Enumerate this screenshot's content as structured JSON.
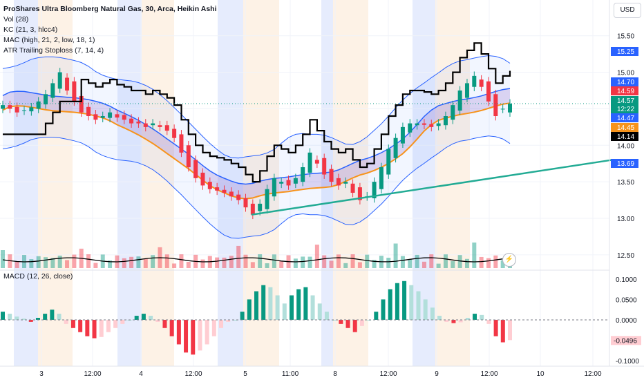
{
  "legend": {
    "title": "ProShares Ultra Bloomberg Natural Gas, 30, Arca, Heikin Ashi",
    "indicators": [
      "Vol (28)",
      "KC (21, 3, hlcc4)",
      "MAC (high, 21, 2, low, 18, 1)",
      "ATR Trailing Stoploss (7, 14, 4)"
    ],
    "macd": "MACD (12, 26, close)"
  },
  "currency": "USD",
  "colors": {
    "up": "#089981",
    "down": "#f23645",
    "kc_line": "#2962ff",
    "mac_orange": "#f7931a",
    "trend": "#22ab94",
    "stop": "#000000",
    "session_blue": "#e6ecfd",
    "session_orange": "#fdf2e6"
  },
  "chart_data": [
    {
      "type": "candlestick",
      "ylim": [
        12.3,
        15.8
      ],
      "y_ticks": [
        "15.50",
        "15.00",
        "14.50",
        "14.00",
        "13.50",
        "13.00",
        "12.50"
      ],
      "x_ticks": [
        "3",
        "12:00",
        "4",
        "12:00",
        "5",
        "11:00",
        "8",
        "12:00",
        "9",
        "12:00",
        "10",
        "12:00"
      ],
      "price_labels": [
        {
          "value": "15.25",
          "color": "#2962ff"
        },
        {
          "value": "14.70",
          "color": "#2962ff"
        },
        {
          "value": "14.59",
          "color": "#f23645"
        },
        {
          "value": "14.57",
          "color": "#089981"
        },
        {
          "value": "12:22",
          "color": "#089981"
        },
        {
          "value": "14.47",
          "color": "#2962ff"
        },
        {
          "value": "14.45",
          "color": "#f7931a"
        },
        {
          "value": "14.14",
          "color": "#000000"
        },
        {
          "value": "13.69",
          "color": "#2962ff"
        }
      ],
      "close_path": [
        14.55,
        14.5,
        14.45,
        14.48,
        14.52,
        14.6,
        14.7,
        14.85,
        15.0,
        14.75,
        14.6,
        14.45,
        14.4,
        14.35,
        14.4,
        14.45,
        14.38,
        14.35,
        14.3,
        14.3,
        14.25,
        14.3,
        14.25,
        14.2,
        14.1,
        13.9,
        13.7,
        13.55,
        13.45,
        13.4,
        13.38,
        13.35,
        13.3,
        13.25,
        13.15,
        13.05,
        13.2,
        13.4,
        13.55,
        13.5,
        13.45,
        13.55,
        13.7,
        13.9,
        13.75,
        13.6,
        13.5,
        13.45,
        13.5,
        13.35,
        13.25,
        13.3,
        13.5,
        13.7,
        13.95,
        14.1,
        14.25,
        14.3,
        14.3,
        14.28,
        14.25,
        14.3,
        14.4,
        14.55,
        14.75,
        14.85,
        14.95,
        14.8,
        14.6,
        14.4,
        14.5,
        14.57
      ]
    },
    {
      "type": "bar",
      "name": "MACD",
      "ylim": [
        -0.11,
        0.12
      ],
      "y_ticks": [
        "0.1000",
        "0.0500",
        "0.0000",
        "-0.0500",
        "-0.1000"
      ],
      "current_label": "-0.0496",
      "values": [
        0.02,
        0.015,
        0.008,
        0.003,
        -0.005,
        0.005,
        0.015,
        0.025,
        0.015,
        -0.01,
        -0.02,
        -0.03,
        -0.04,
        -0.045,
        -0.042,
        -0.03,
        -0.02,
        -0.01,
        0.0,
        0.01,
        0.015,
        0.01,
        -0.005,
        -0.02,
        -0.04,
        -0.06,
        -0.08,
        -0.085,
        -0.075,
        -0.06,
        -0.04,
        -0.02,
        -0.005,
        0.0,
        0.02,
        0.05,
        0.07,
        0.085,
        0.08,
        0.06,
        0.04,
        0.06,
        0.075,
        0.08,
        0.06,
        0.04,
        0.02,
        0.0,
        -0.01,
        -0.02,
        -0.03,
        -0.015,
        0.0,
        0.02,
        0.05,
        0.075,
        0.09,
        0.095,
        0.085,
        0.07,
        0.05,
        0.03,
        0.01,
        -0.005,
        -0.008,
        -0.006,
        0.005,
        0.015,
        0.012,
        -0.01,
        -0.04,
        -0.055,
        -0.0496
      ]
    }
  ]
}
